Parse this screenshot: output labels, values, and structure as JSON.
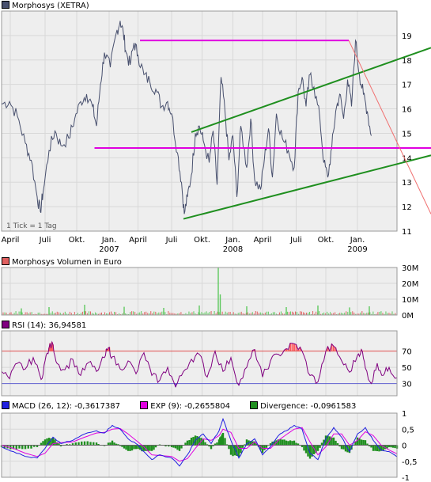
{
  "chart_data": [
    {
      "type": "line",
      "title": "Morphosys (XETRA)",
      "note": "1 Tick = 1 Tag",
      "colors": {
        "price": "#48506e",
        "support_resistance": "#e000e0",
        "channel": "#1f8f1f",
        "downtrend": "#f07070",
        "grid": "#d8d8d8",
        "background": "#eeeeee"
      },
      "ylim": [
        11,
        20
      ],
      "y_ticks": [
        11,
        12,
        13,
        14,
        15,
        16,
        17,
        18,
        19
      ],
      "x_ticks": [
        {
          "label": "April",
          "sub": "",
          "t": 0.022
        },
        {
          "label": "Juli",
          "sub": "",
          "t": 0.11
        },
        {
          "label": "Okt.",
          "sub": "",
          "t": 0.19
        },
        {
          "label": "Jan.",
          "sub": "2007",
          "t": 0.272
        },
        {
          "label": "April",
          "sub": "",
          "t": 0.345
        },
        {
          "label": "Juli",
          "sub": "",
          "t": 0.43
        },
        {
          "label": "Okt.",
          "sub": "",
          "t": 0.507
        },
        {
          "label": "Jan.",
          "sub": "2008",
          "t": 0.585
        },
        {
          "label": "April",
          "sub": "",
          "t": 0.66
        },
        {
          "label": "Juli",
          "sub": "",
          "t": 0.745
        },
        {
          "label": "Okt.",
          "sub": "",
          "t": 0.82
        },
        {
          "label": "Jan.",
          "sub": "2009",
          "t": 0.9
        }
      ],
      "price_series": [
        [
          0.0,
          16.2
        ],
        [
          0.02,
          16.3
        ],
        [
          0.04,
          15.7
        ],
        [
          0.06,
          14.6
        ],
        [
          0.075,
          13.9
        ],
        [
          0.09,
          12.4
        ],
        [
          0.098,
          11.8
        ],
        [
          0.105,
          12.6
        ],
        [
          0.12,
          14.3
        ],
        [
          0.135,
          15.1
        ],
        [
          0.15,
          14.5
        ],
        [
          0.17,
          14.8
        ],
        [
          0.185,
          15.6
        ],
        [
          0.2,
          16.3
        ],
        [
          0.215,
          16.6
        ],
        [
          0.23,
          16.1
        ],
        [
          0.24,
          15.3
        ],
        [
          0.25,
          17.0
        ],
        [
          0.26,
          18.3
        ],
        [
          0.275,
          17.7
        ],
        [
          0.29,
          19.1
        ],
        [
          0.3,
          19.6
        ],
        [
          0.308,
          19.1
        ],
        [
          0.315,
          18.3
        ],
        [
          0.325,
          17.8
        ],
        [
          0.335,
          18.7
        ],
        [
          0.345,
          18.2
        ],
        [
          0.36,
          17.4
        ],
        [
          0.375,
          17.1
        ],
        [
          0.39,
          16.8
        ],
        [
          0.405,
          16.1
        ],
        [
          0.42,
          16.3
        ],
        [
          0.43,
          15.8
        ],
        [
          0.445,
          14.2
        ],
        [
          0.455,
          13.0
        ],
        [
          0.462,
          11.7
        ],
        [
          0.47,
          12.4
        ],
        [
          0.48,
          13.3
        ],
        [
          0.49,
          15.0
        ],
        [
          0.5,
          15.3
        ],
        [
          0.51,
          14.7
        ],
        [
          0.525,
          13.8
        ],
        [
          0.535,
          15.1
        ],
        [
          0.545,
          12.9
        ],
        [
          0.555,
          17.3
        ],
        [
          0.565,
          15.9
        ],
        [
          0.575,
          13.9
        ],
        [
          0.585,
          14.9
        ],
        [
          0.595,
          12.4
        ],
        [
          0.605,
          15.3
        ],
        [
          0.62,
          13.6
        ],
        [
          0.63,
          15.6
        ],
        [
          0.64,
          13.1
        ],
        [
          0.655,
          12.7
        ],
        [
          0.665,
          14.0
        ],
        [
          0.675,
          15.2
        ],
        [
          0.685,
          13.2
        ],
        [
          0.695,
          15.8
        ],
        [
          0.71,
          14.8
        ],
        [
          0.725,
          14.3
        ],
        [
          0.74,
          13.6
        ],
        [
          0.75,
          16.7
        ],
        [
          0.76,
          17.3
        ],
        [
          0.77,
          16.1
        ],
        [
          0.78,
          17.4
        ],
        [
          0.79,
          16.9
        ],
        [
          0.805,
          15.6
        ],
        [
          0.815,
          13.8
        ],
        [
          0.825,
          13.2
        ],
        [
          0.835,
          14.4
        ],
        [
          0.845,
          15.9
        ],
        [
          0.855,
          16.6
        ],
        [
          0.865,
          15.6
        ],
        [
          0.875,
          17.2
        ],
        [
          0.885,
          16.1
        ],
        [
          0.895,
          18.8
        ],
        [
          0.905,
          17.4
        ],
        [
          0.915,
          16.6
        ],
        [
          0.925,
          15.9
        ],
        [
          0.935,
          14.9
        ]
      ],
      "lines": [
        {
          "name": "resistance",
          "t0": 0.35,
          "y0": 18.8,
          "t1": 0.878,
          "y1": 18.8,
          "color": "#e000e0"
        },
        {
          "name": "support",
          "t0": 0.235,
          "y0": 14.4,
          "t1": 1.0,
          "y1": 14.4,
          "color": "#e000e0"
        },
        {
          "name": "channel-upper",
          "t0": 0.48,
          "y0": 15.05,
          "t1": 1.0,
          "y1": 18.5,
          "color": "#1f8f1f"
        },
        {
          "name": "channel-lower",
          "t0": 0.46,
          "y0": 11.5,
          "t1": 1.0,
          "y1": 14.1,
          "color": "#1f8f1f"
        },
        {
          "name": "downtrend",
          "t0": 0.878,
          "y0": 18.8,
          "t1": 1.0,
          "y1": 11.7,
          "color": "#f07070"
        }
      ]
    },
    {
      "type": "bar",
      "title": "Morphosys Volumen in Euro",
      "ylim": [
        0,
        30
      ],
      "y_ticks": [
        {
          "v": 30,
          "label": "30M"
        },
        {
          "v": 20,
          "label": "20M"
        },
        {
          "v": 10,
          "label": "10M"
        },
        {
          "v": 0,
          "label": "0M"
        }
      ],
      "colors": {
        "up": "#5ec85e",
        "down": "#e06060"
      },
      "spikes": [
        {
          "t": 0.05,
          "value": 4.2
        },
        {
          "t": 0.12,
          "value": 5.0
        },
        {
          "t": 0.21,
          "value": 6.5
        },
        {
          "t": 0.31,
          "value": 5.2
        },
        {
          "t": 0.41,
          "value": 4.5
        },
        {
          "t": 0.5,
          "value": 6.0
        },
        {
          "t": 0.548,
          "value": 30.0
        },
        {
          "t": 0.553,
          "value": 13.0
        },
        {
          "t": 0.62,
          "value": 5.5
        },
        {
          "t": 0.72,
          "value": 5.0
        },
        {
          "t": 0.8,
          "value": 6.0
        },
        {
          "t": 0.88,
          "value": 4.8
        },
        {
          "t": 0.93,
          "value": 5.5
        }
      ],
      "base_level": 1.5
    },
    {
      "type": "line",
      "title": "RSI (14): 36,94581",
      "ylim": [
        15,
        95
      ],
      "y_ticks": [
        30,
        50,
        70
      ],
      "levels": [
        {
          "v": 70,
          "color": "#e05050"
        },
        {
          "v": 30,
          "color": "#6060d0"
        }
      ],
      "colors": {
        "line": "#800080",
        "overbought_fill": "#ff6060",
        "oversold_fill": "#6060ff"
      },
      "series": [
        [
          0.0,
          45
        ],
        [
          0.02,
          36
        ],
        [
          0.04,
          55
        ],
        [
          0.06,
          48
        ],
        [
          0.08,
          62
        ],
        [
          0.1,
          35
        ],
        [
          0.11,
          58
        ],
        [
          0.12,
          74
        ],
        [
          0.13,
          78
        ],
        [
          0.14,
          55
        ],
        [
          0.16,
          47
        ],
        [
          0.18,
          60
        ],
        [
          0.2,
          40
        ],
        [
          0.22,
          56
        ],
        [
          0.24,
          45
        ],
        [
          0.26,
          62
        ],
        [
          0.27,
          74
        ],
        [
          0.28,
          63
        ],
        [
          0.3,
          48
        ],
        [
          0.32,
          58
        ],
        [
          0.34,
          42
        ],
        [
          0.36,
          68
        ],
        [
          0.38,
          40
        ],
        [
          0.4,
          34
        ],
        [
          0.42,
          50
        ],
        [
          0.44,
          26
        ],
        [
          0.46,
          45
        ],
        [
          0.48,
          60
        ],
        [
          0.5,
          66
        ],
        [
          0.52,
          38
        ],
        [
          0.54,
          70
        ],
        [
          0.56,
          45
        ],
        [
          0.58,
          62
        ],
        [
          0.6,
          28
        ],
        [
          0.62,
          50
        ],
        [
          0.64,
          72
        ],
        [
          0.66,
          38
        ],
        [
          0.68,
          58
        ],
        [
          0.7,
          66
        ],
        [
          0.72,
          73
        ],
        [
          0.74,
          79
        ],
        [
          0.76,
          70
        ],
        [
          0.78,
          40
        ],
        [
          0.8,
          32
        ],
        [
          0.82,
          70
        ],
        [
          0.84,
          76
        ],
        [
          0.86,
          58
        ],
        [
          0.88,
          44
        ],
        [
          0.9,
          65
        ],
        [
          0.91,
          72
        ],
        [
          0.92,
          49
        ],
        [
          0.935,
          30
        ],
        [
          0.95,
          55
        ],
        [
          0.965,
          40
        ],
        [
          0.98,
          50
        ],
        [
          1.0,
          37
        ]
      ]
    },
    {
      "type": "line",
      "title": "MACD",
      "legend": [
        {
          "label": "MACD (26, 12): -0,3617387",
          "color": "#2020e0"
        },
        {
          "label": "EXP (9): -0,2655804",
          "color": "#e000e0"
        },
        {
          "label": "Divergence: -0,0961583",
          "color": "#1f8f1f"
        }
      ],
      "ylim": [
        -1,
        1
      ],
      "y_ticks": [
        {
          "v": 1,
          "label": "1"
        },
        {
          "v": 0.5,
          "label": "0,5"
        },
        {
          "v": 0,
          "label": "0"
        },
        {
          "v": -0.5,
          "label": "-0,5"
        },
        {
          "v": -1,
          "label": "-1"
        }
      ],
      "macd": [
        [
          0.0,
          -0.05
        ],
        [
          0.03,
          -0.2
        ],
        [
          0.06,
          -0.35
        ],
        [
          0.09,
          -0.4
        ],
        [
          0.11,
          -0.1
        ],
        [
          0.13,
          0.25
        ],
        [
          0.15,
          0.05
        ],
        [
          0.18,
          0.15
        ],
        [
          0.21,
          0.35
        ],
        [
          0.24,
          0.45
        ],
        [
          0.26,
          0.38
        ],
        [
          0.28,
          0.62
        ],
        [
          0.3,
          0.5
        ],
        [
          0.32,
          0.2
        ],
        [
          0.34,
          0.05
        ],
        [
          0.36,
          -0.2
        ],
        [
          0.38,
          -0.45
        ],
        [
          0.4,
          -0.3
        ],
        [
          0.43,
          -0.4
        ],
        [
          0.45,
          -0.65
        ],
        [
          0.47,
          -0.3
        ],
        [
          0.49,
          0.15
        ],
        [
          0.51,
          0.35
        ],
        [
          0.53,
          0.05
        ],
        [
          0.55,
          0.45
        ],
        [
          0.56,
          0.82
        ],
        [
          0.58,
          0.15
        ],
        [
          0.6,
          -0.4
        ],
        [
          0.62,
          0.05
        ],
        [
          0.64,
          0.2
        ],
        [
          0.66,
          -0.3
        ],
        [
          0.68,
          -0.05
        ],
        [
          0.7,
          0.3
        ],
        [
          0.72,
          0.45
        ],
        [
          0.74,
          0.62
        ],
        [
          0.76,
          0.5
        ],
        [
          0.78,
          -0.25
        ],
        [
          0.8,
          -0.45
        ],
        [
          0.82,
          0.2
        ],
        [
          0.84,
          0.55
        ],
        [
          0.86,
          0.25
        ],
        [
          0.88,
          -0.2
        ],
        [
          0.9,
          0.35
        ],
        [
          0.92,
          0.55
        ],
        [
          0.94,
          0.15
        ],
        [
          0.96,
          -0.15
        ],
        [
          0.98,
          -0.2
        ],
        [
          1.0,
          -0.36
        ]
      ],
      "signal": [
        [
          0.0,
          0.0
        ],
        [
          0.03,
          -0.1
        ],
        [
          0.06,
          -0.25
        ],
        [
          0.09,
          -0.35
        ],
        [
          0.11,
          -0.25
        ],
        [
          0.13,
          0.05
        ],
        [
          0.15,
          0.08
        ],
        [
          0.18,
          0.1
        ],
        [
          0.21,
          0.25
        ],
        [
          0.24,
          0.38
        ],
        [
          0.26,
          0.4
        ],
        [
          0.28,
          0.5
        ],
        [
          0.3,
          0.52
        ],
        [
          0.32,
          0.35
        ],
        [
          0.34,
          0.15
        ],
        [
          0.36,
          -0.05
        ],
        [
          0.38,
          -0.3
        ],
        [
          0.4,
          -0.32
        ],
        [
          0.43,
          -0.35
        ],
        [
          0.45,
          -0.5
        ],
        [
          0.47,
          -0.42
        ],
        [
          0.49,
          -0.1
        ],
        [
          0.51,
          0.2
        ],
        [
          0.53,
          0.15
        ],
        [
          0.55,
          0.3
        ],
        [
          0.56,
          0.5
        ],
        [
          0.58,
          0.4
        ],
        [
          0.6,
          -0.1
        ],
        [
          0.62,
          -0.1
        ],
        [
          0.64,
          0.1
        ],
        [
          0.66,
          -0.1
        ],
        [
          0.68,
          -0.1
        ],
        [
          0.7,
          0.15
        ],
        [
          0.72,
          0.33
        ],
        [
          0.74,
          0.5
        ],
        [
          0.76,
          0.55
        ],
        [
          0.78,
          0.1
        ],
        [
          0.8,
          -0.3
        ],
        [
          0.82,
          -0.05
        ],
        [
          0.84,
          0.35
        ],
        [
          0.86,
          0.35
        ],
        [
          0.88,
          0.0
        ],
        [
          0.9,
          0.15
        ],
        [
          0.92,
          0.42
        ],
        [
          0.94,
          0.3
        ],
        [
          0.96,
          0.0
        ],
        [
          0.98,
          -0.15
        ],
        [
          1.0,
          -0.27
        ]
      ]
    }
  ]
}
